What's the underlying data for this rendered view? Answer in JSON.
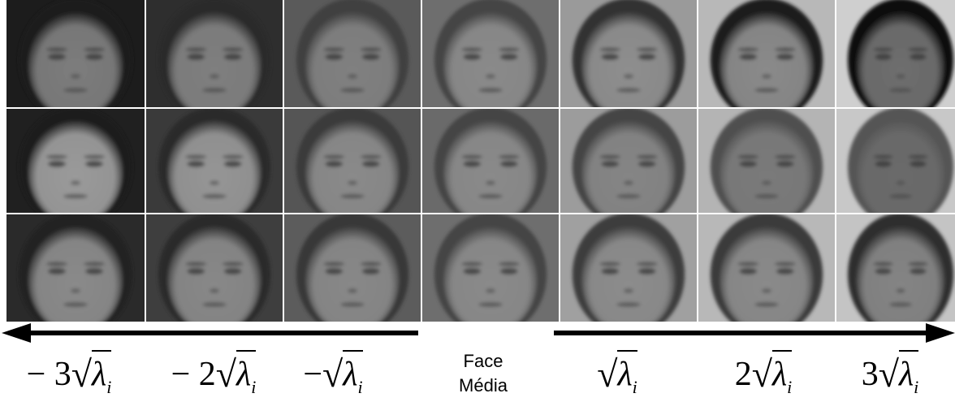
{
  "grid": {
    "rows": [
      {
        "cells": [
          {
            "tone": "dark",
            "hair": "#1a1a1a",
            "skin": "#7c7c7c",
            "bg": "#1c1c1c"
          },
          {
            "tone": "dark",
            "hair": "#2a2a2a",
            "skin": "#7f7f7f",
            "bg": "#2e2e2e"
          },
          {
            "tone": "mid",
            "hair": "#404040",
            "skin": "#808080",
            "bg": "#5a5a5a"
          },
          {
            "tone": "mean",
            "hair": "#444444",
            "skin": "#8a8a8a",
            "bg": "#6e6e6e"
          },
          {
            "tone": "light",
            "hair": "#333333",
            "skin": "#8e8e8e",
            "bg": "#9a9a9a"
          },
          {
            "tone": "light",
            "hair": "#1e1e1e",
            "skin": "#8a8a8a",
            "bg": "#b8b8b8"
          },
          {
            "tone": "light",
            "hair": "#0f0f0f",
            "skin": "#6e6e6e",
            "bg": "#cfcfcf"
          }
        ]
      },
      {
        "cells": [
          {
            "tone": "dark",
            "hair": "#1c1c1c",
            "skin": "#9a9a9a",
            "bg": "#202020"
          },
          {
            "tone": "dark",
            "hair": "#2a2a2a",
            "skin": "#959595",
            "bg": "#3a3a3a"
          },
          {
            "tone": "mid",
            "hair": "#3a3a3a",
            "skin": "#8a8a8a",
            "bg": "#555555"
          },
          {
            "tone": "mean",
            "hair": "#444444",
            "skin": "#8a8a8a",
            "bg": "#6a6a6a"
          },
          {
            "tone": "light",
            "hair": "#444444",
            "skin": "#858585",
            "bg": "#9c9c9c"
          },
          {
            "tone": "light",
            "hair": "#505050",
            "skin": "#7a7a7a",
            "bg": "#b4b4b4"
          },
          {
            "tone": "light",
            "hair": "#555555",
            "skin": "#6a6a6a",
            "bg": "#c8c8c8"
          }
        ]
      },
      {
        "cells": [
          {
            "tone": "dark",
            "hair": "#222222",
            "skin": "#8a8a8a",
            "bg": "#2a2a2a"
          },
          {
            "tone": "dark",
            "hair": "#2c2c2c",
            "skin": "#888888",
            "bg": "#3e3e3e"
          },
          {
            "tone": "mid",
            "hair": "#383838",
            "skin": "#888888",
            "bg": "#5c5c5c"
          },
          {
            "tone": "mean",
            "hair": "#444444",
            "skin": "#8a8a8a",
            "bg": "#6e6e6e"
          },
          {
            "tone": "light",
            "hair": "#3e3e3e",
            "skin": "#8c8c8c",
            "bg": "#a0a0a0"
          },
          {
            "tone": "light",
            "hair": "#3a3a3a",
            "skin": "#8a8a8a",
            "bg": "#b8b8b8"
          },
          {
            "tone": "light",
            "hair": "#2e2e2e",
            "skin": "#848484",
            "bg": "#c4c4c4"
          }
        ]
      }
    ]
  },
  "labels": {
    "minus3": {
      "coef": "− 3",
      "symbol": "λ",
      "sub": "i"
    },
    "minus2": {
      "coef": "− 2",
      "symbol": "λ",
      "sub": "i"
    },
    "minus1": {
      "coef": "−",
      "symbol": "λ",
      "sub": "i"
    },
    "center": {
      "line1": "Face",
      "line2": "Média"
    },
    "plus1": {
      "coef": "",
      "symbol": "λ",
      "sub": "i"
    },
    "plus2": {
      "coef": "2",
      "symbol": "λ",
      "sub": "i"
    },
    "plus3": {
      "coef": "3",
      "symbol": "λ",
      "sub": "i"
    }
  }
}
